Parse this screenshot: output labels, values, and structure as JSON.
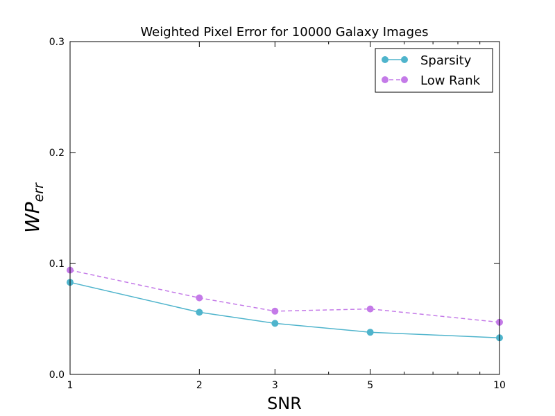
{
  "chart_data": {
    "type": "line",
    "title": "Weighted Pixel Error for 10000 Galaxy Images",
    "xlabel": "SNR",
    "ylabel_base": "WP",
    "ylabel_sub": "err",
    "x_scale": "log",
    "xlim": [
      1,
      10
    ],
    "ylim": [
      0.0,
      0.3
    ],
    "x_ticks": [
      1,
      2,
      3,
      5,
      10
    ],
    "x_tick_labels": [
      "1",
      "2",
      "3",
      "5",
      "10"
    ],
    "y_ticks": [
      0.0,
      0.1,
      0.2,
      0.3
    ],
    "y_tick_labels": [
      "0.0",
      "0.1",
      "0.2",
      "0.3"
    ],
    "grid": false,
    "legend_position": "top-right",
    "x": [
      1,
      2,
      3,
      5,
      10
    ],
    "series": [
      {
        "name": "Sparsity",
        "values": [
          0.083,
          0.056,
          0.046,
          0.038,
          0.033
        ],
        "color": "#4fb4cc",
        "linestyle": "solid"
      },
      {
        "name": "Low Rank",
        "values": [
          0.094,
          0.069,
          0.057,
          0.059,
          0.047
        ],
        "color": "#c47ae8",
        "linestyle": "dashed"
      }
    ]
  }
}
